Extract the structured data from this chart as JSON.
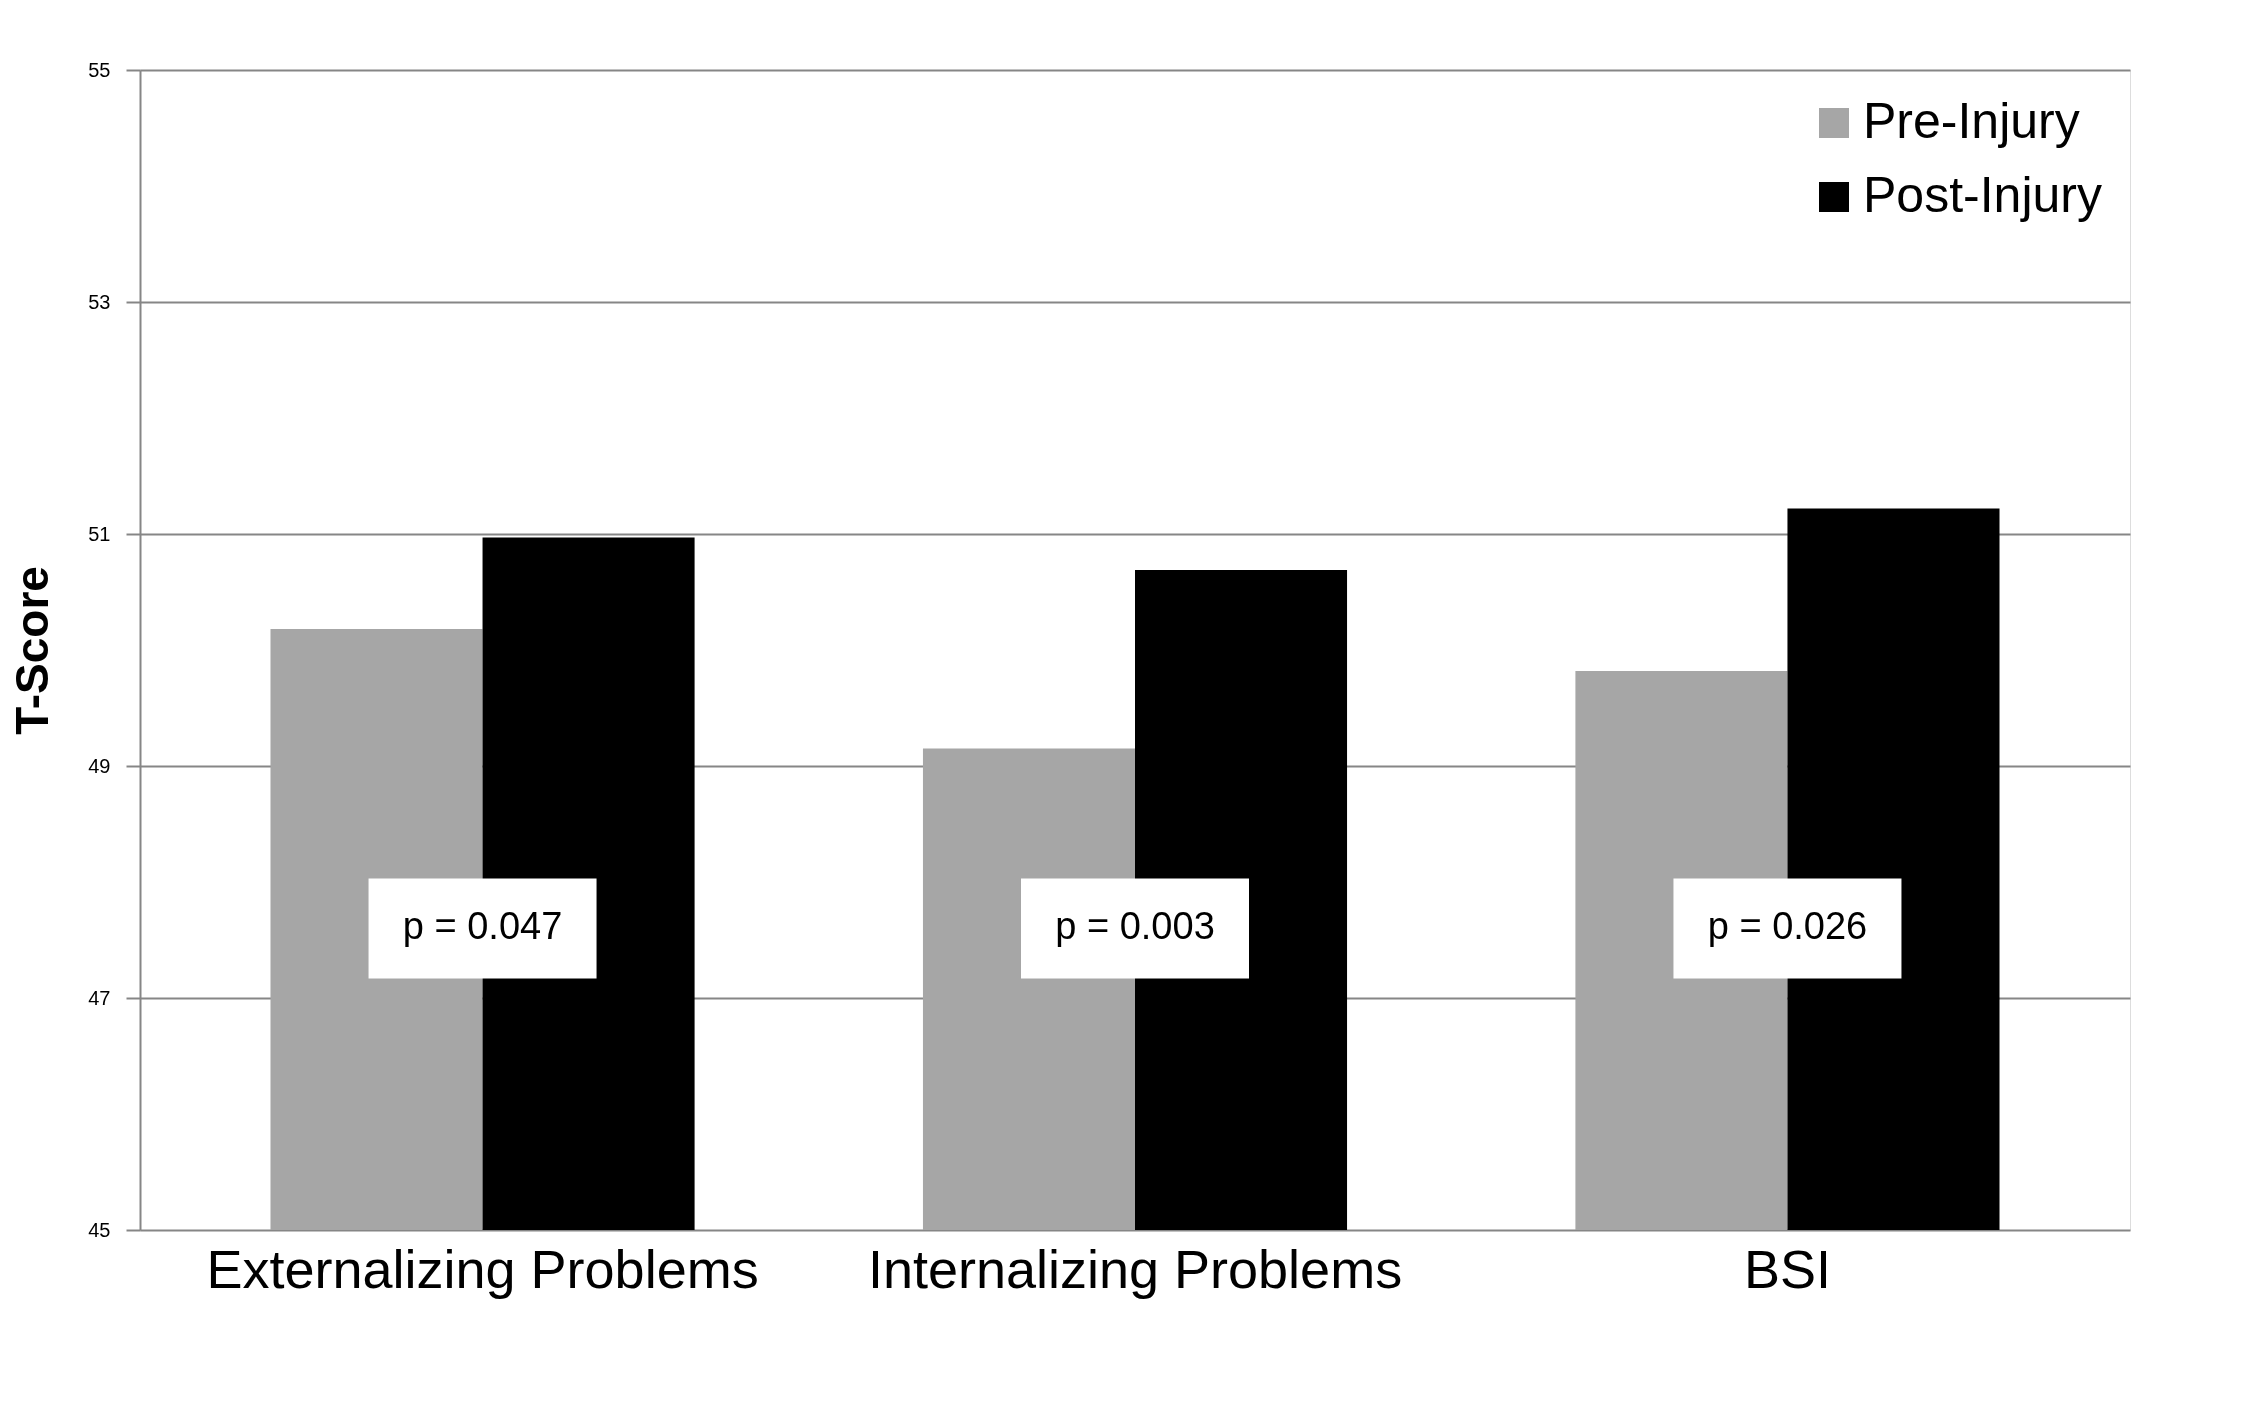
{
  "chart_data": {
    "type": "bar",
    "ylabel": "T-Score",
    "categories": [
      "Externalizing Problems",
      "Internalizing Problems",
      "BSI"
    ],
    "series": [
      {
        "name": "Pre-Injury",
        "color": "#a6a6a6",
        "values": [
          50.18,
          49.15,
          49.82
        ]
      },
      {
        "name": "Post-Injury",
        "color": "#000000",
        "values": [
          50.97,
          50.69,
          51.22
        ]
      }
    ],
    "ylim": [
      45,
      55
    ],
    "yticks": [
      45,
      47,
      49,
      51,
      53,
      55
    ],
    "grid": "y",
    "legend": "top right",
    "annotations": [
      {
        "text": "p = 0.047",
        "x": "Externalizing Problems",
        "y": 47.6
      },
      {
        "text": "p = 0.003",
        "x": "Internalizing Problems",
        "y": 47.6
      },
      {
        "text": "p = 0.026",
        "x": "BSI",
        "y": 47.6
      }
    ]
  }
}
